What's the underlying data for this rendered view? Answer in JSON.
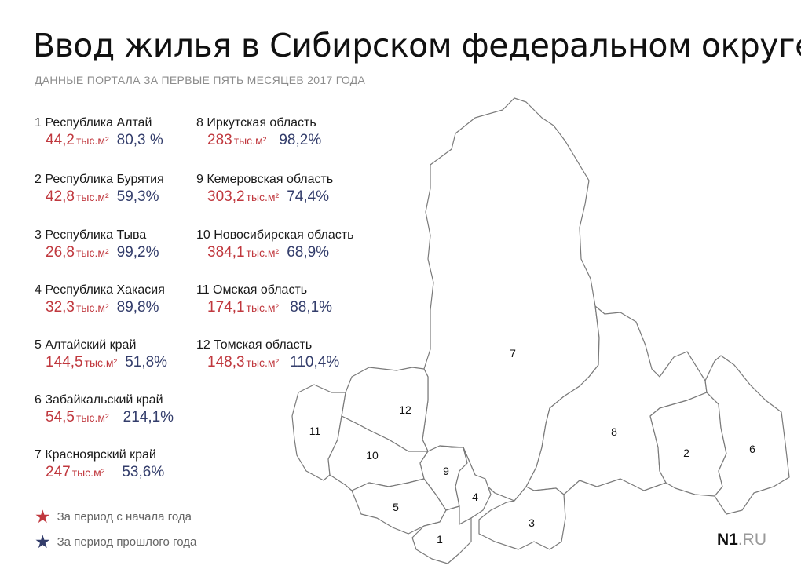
{
  "title": "Ввод жилья в Сибирском федеральном округе",
  "subtitle": "ДАННЫЕ ПОРТАЛА ЗА ПЕРВЫЕ ПЯТЬ МЕСЯЦЕВ 2017 ГОДА",
  "unit": "тыс.м²",
  "colors": {
    "current": "#c0383e",
    "previous": "#333d6b"
  },
  "regions": [
    {
      "num": "1",
      "name": "1 Республика Алтай",
      "current": "44,2",
      "previous": "80,3 %"
    },
    {
      "num": "2",
      "name": "2 Республика Бурятия",
      "current": "42,8",
      "previous": "59,3%"
    },
    {
      "num": "3",
      "name": "3 Республика Тыва",
      "current": "26,8",
      "previous": "99,2%"
    },
    {
      "num": "4",
      "name": "4 Республика Хакасия",
      "current": "32,3",
      "previous": "89,8%"
    },
    {
      "num": "5",
      "name": "5 Алтайский край",
      "current": "144,5",
      "previous": "51,8%"
    },
    {
      "num": "6",
      "name": "6 Забайкальский край",
      "current": "54,5",
      "previous": "214,1%"
    },
    {
      "num": "7",
      "name": "7 Красноярский край",
      "current": "247",
      "previous": "53,6%"
    },
    {
      "num": "8",
      "name": "8  Иркутская область",
      "current": "283",
      "previous": "98,2%"
    },
    {
      "num": "9",
      "name": "9   Кемеровская область",
      "current": "303,2",
      "previous": "74,4%"
    },
    {
      "num": "10",
      "name": "10 Новосибирская область",
      "current": "384,1",
      "previous": "68,9%"
    },
    {
      "num": "11",
      "name": "11 Омская область",
      "current": "174,1",
      "previous": "88,1%"
    },
    {
      "num": "12",
      "name": "12 Томская область",
      "current": "148,3",
      "previous": "110,4%"
    }
  ],
  "legend": {
    "current": {
      "label": "За период с начала года",
      "icon": "star-icon",
      "color": "#c0383e"
    },
    "previous": {
      "label": "За период прошлого года",
      "icon": "star-icon",
      "color": "#333d6b"
    }
  },
  "logo": {
    "mark": "N1",
    "domain": ".RU"
  }
}
